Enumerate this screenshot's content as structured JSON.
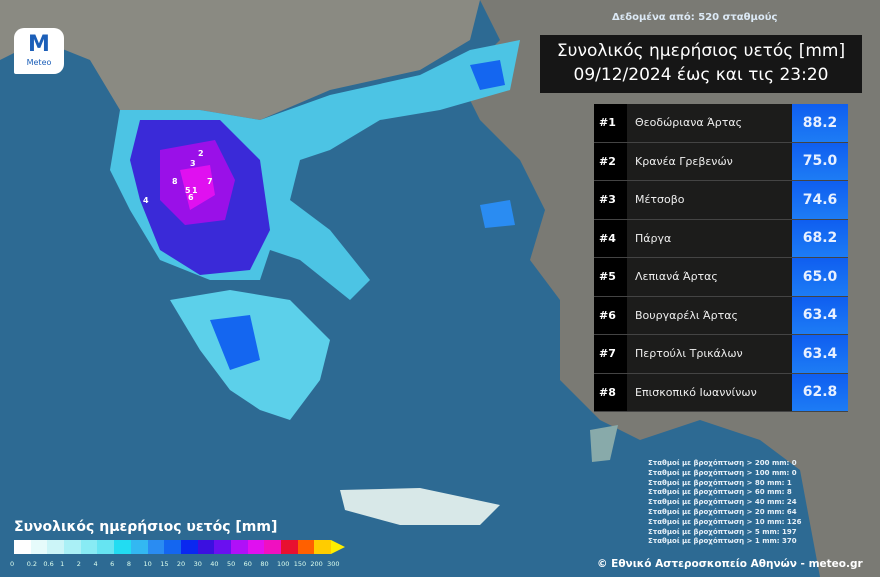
{
  "logo": {
    "brand": "Meteo",
    "mark": "M"
  },
  "stations_note": "Δεδομένα από: 520 σταθμούς",
  "title": {
    "line1": "Συνολικός ημερήσιος υετός [mm]",
    "line2": "09/12/2024 έως και τις 23:20"
  },
  "ranking": [
    {
      "rank": "#1",
      "name": "Θεοδώριανα Άρτας",
      "value": "88.2"
    },
    {
      "rank": "#2",
      "name": "Κρανέα Γρεβενών",
      "value": "75.0"
    },
    {
      "rank": "#3",
      "name": "Μέτσοβο",
      "value": "74.6"
    },
    {
      "rank": "#4",
      "name": "Πάργα",
      "value": "68.2"
    },
    {
      "rank": "#5",
      "name": "Λεπιανά Άρτας",
      "value": "65.0"
    },
    {
      "rank": "#6",
      "name": "Βουργαρέλι Άρτας",
      "value": "63.4"
    },
    {
      "rank": "#7",
      "name": "Περτούλι Τρικάλων",
      "value": "63.4"
    },
    {
      "rank": "#8",
      "name": "Επισκοπικό Ιωαννίνων",
      "value": "62.8"
    }
  ],
  "counts": [
    "Σταθμοί με βροχόπτωση > 200 mm: 0",
    "Σταθμοί με βροχόπτωση > 100 mm: 0",
    "Σταθμοί με βροχόπτωση > 80 mm: 1",
    "Σταθμοί με βροχόπτωση > 60 mm: 8",
    "Σταθμοί με βροχόπτωση > 40 mm: 24",
    "Σταθμοί με βροχόπτωση > 20 mm: 64",
    "Σταθμοί με βροχόπτωση > 10 mm: 126",
    "Σταθμοί με βροχόπτωση > 5 mm: 197",
    "Σταθμοί με βροχόπτωση > 1 mm: 370"
  ],
  "credit": "© Εθνικό Αστεροσκοπείο Αθηνών - meteo.gr",
  "legend": {
    "title": "Συνολικός ημερήσιος υετός [mm]",
    "ticks": [
      "0",
      "0.2",
      "0.6",
      "1",
      "2",
      "4",
      "6",
      "8",
      "10",
      "15",
      "20",
      "30",
      "40",
      "50",
      "60",
      "80",
      "100",
      "150",
      "200",
      "300"
    ],
    "colors": [
      "#ffffff",
      "#e6fbfb",
      "#ccf5f8",
      "#aaf0f6",
      "#88ebf4",
      "#66e4f2",
      "#22dcf2",
      "#33b8f2",
      "#2a8cf2",
      "#1466f0",
      "#0a28f0",
      "#3b10e0",
      "#6a10f0",
      "#b010f8",
      "#e010f0",
      "#f010c0",
      "#e81030",
      "#ff6000",
      "#ffcc00"
    ]
  },
  "map_markers": [
    "1",
    "2",
    "3",
    "4",
    "5",
    "6",
    "7",
    "8"
  ]
}
